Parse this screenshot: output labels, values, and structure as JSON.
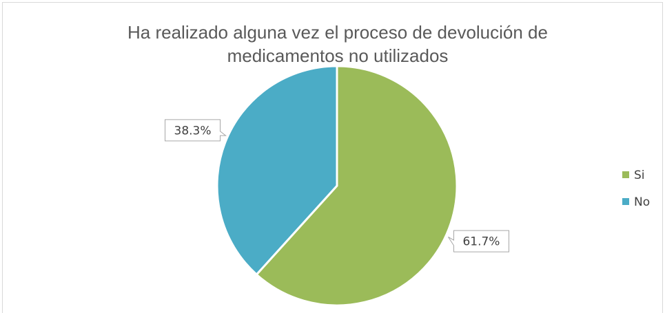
{
  "chart_data": {
    "type": "pie",
    "title": "Ha realizado alguna vez el proceso de devolución de medicamentos no utilizados",
    "categories": [
      "Si",
      "No"
    ],
    "values": [
      61.7,
      38.3
    ],
    "value_labels": [
      "61.7%",
      "38.3%"
    ],
    "colors": [
      "#9bbb59",
      "#4bacc6"
    ],
    "legend": "right"
  }
}
